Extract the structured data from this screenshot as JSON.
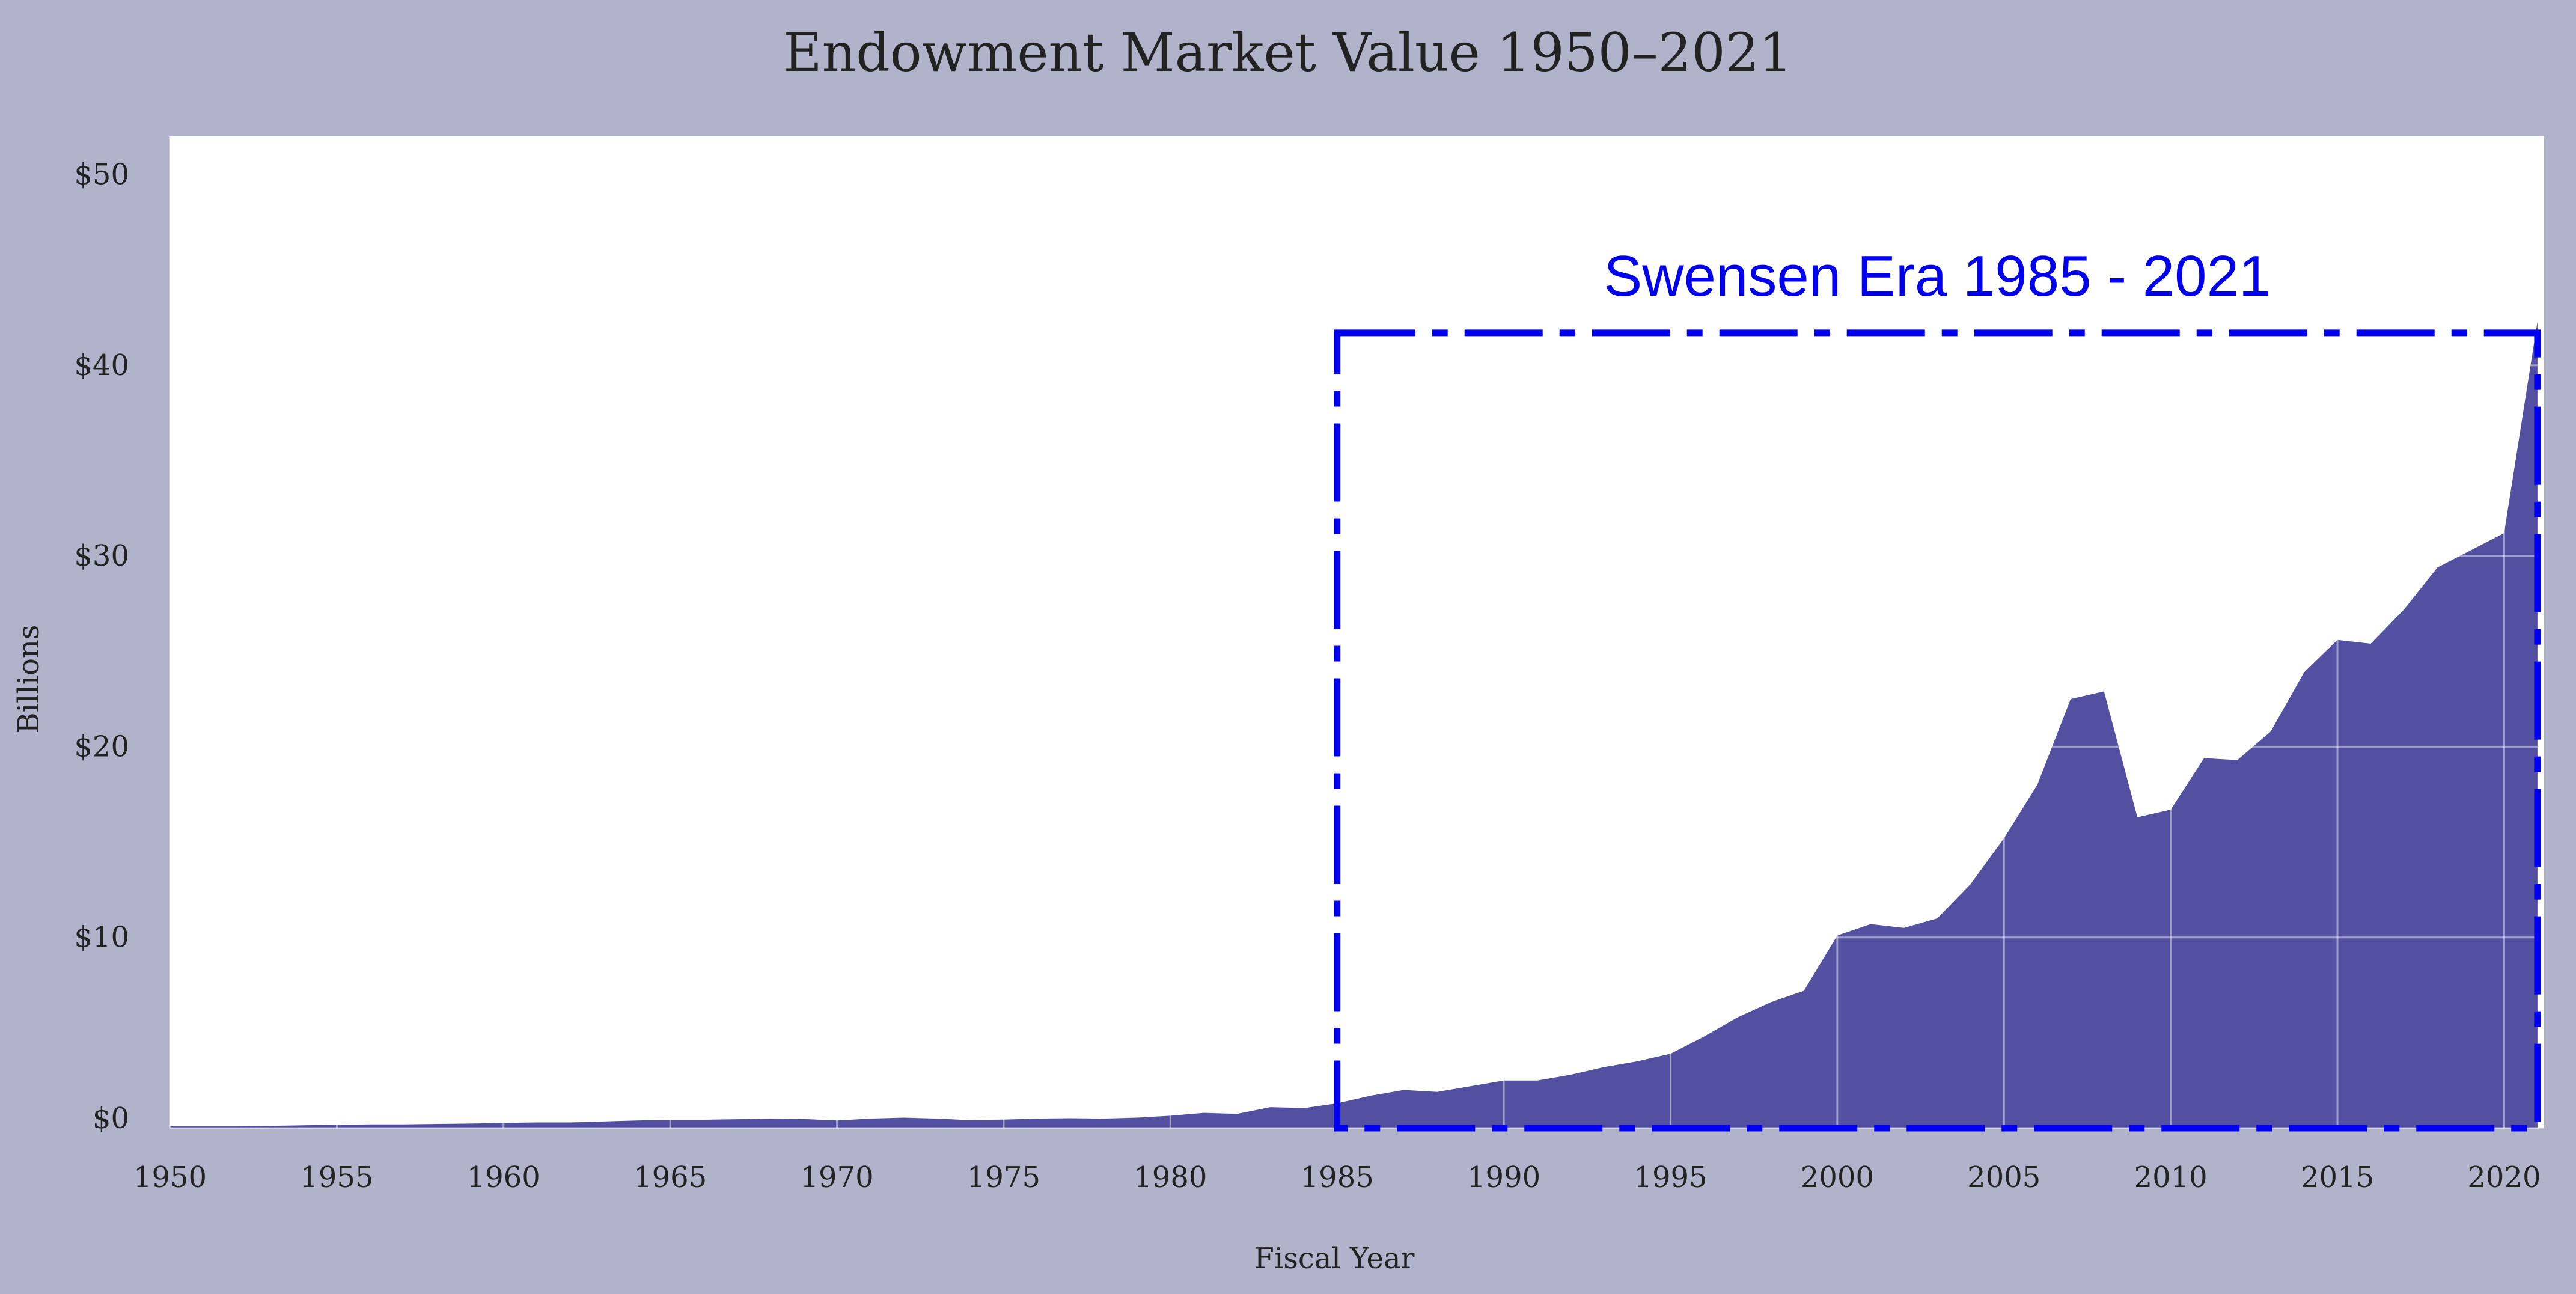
{
  "chart_data": {
    "type": "area",
    "title": "Endowment Market Value 1950–2021",
    "xlabel": "Fiscal Year",
    "ylabel": "Billions",
    "xlim": [
      1950,
      2021
    ],
    "ylim": [
      0,
      52
    ],
    "x_ticks": [
      {
        "value": 1950,
        "label": "1950"
      },
      {
        "value": 1955,
        "label": "1955"
      },
      {
        "value": 1960,
        "label": "1960"
      },
      {
        "value": 1965,
        "label": "1965"
      },
      {
        "value": 1970,
        "label": "1970"
      },
      {
        "value": 1975,
        "label": "1975"
      },
      {
        "value": 1980,
        "label": "1980"
      },
      {
        "value": 1985,
        "label": "1985"
      },
      {
        "value": 1990,
        "label": "1990"
      },
      {
        "value": 1995,
        "label": "1995"
      },
      {
        "value": 2000,
        "label": "2000"
      },
      {
        "value": 2005,
        "label": "2005"
      },
      {
        "value": 2010,
        "label": "2010"
      },
      {
        "value": 2015,
        "label": "2015"
      },
      {
        "value": 2020,
        "label": "2020"
      }
    ],
    "y_ticks": [
      {
        "value": 0,
        "label": "$0"
      },
      {
        "value": 10,
        "label": "$10"
      },
      {
        "value": 20,
        "label": "$20"
      },
      {
        "value": 30,
        "label": "$30"
      },
      {
        "value": 40,
        "label": "$40"
      },
      {
        "value": 50,
        "label": "$50"
      }
    ],
    "grid": true,
    "series": [
      {
        "color": "#5350a2",
        "x": [
          1950,
          1951,
          1952,
          1953,
          1954,
          1955,
          1956,
          1957,
          1958,
          1959,
          1960,
          1961,
          1962,
          1963,
          1964,
          1965,
          1966,
          1967,
          1968,
          1969,
          1970,
          1971,
          1972,
          1973,
          1974,
          1975,
          1976,
          1977,
          1978,
          1979,
          1980,
          1981,
          1982,
          1983,
          1984,
          1985,
          1986,
          1987,
          1988,
          1989,
          1990,
          1991,
          1992,
          1993,
          1994,
          1995,
          1996,
          1997,
          1998,
          1999,
          2000,
          2001,
          2002,
          2003,
          2004,
          2005,
          2006,
          2007,
          2008,
          2009,
          2010,
          2011,
          2012,
          2013,
          2014,
          2015,
          2016,
          2017,
          2018,
          2019,
          2020,
          2021
        ],
        "values": [
          0.1,
          0.1,
          0.1,
          0.12,
          0.15,
          0.17,
          0.2,
          0.2,
          0.22,
          0.24,
          0.27,
          0.3,
          0.3,
          0.35,
          0.4,
          0.44,
          0.44,
          0.47,
          0.5,
          0.48,
          0.4,
          0.5,
          0.55,
          0.5,
          0.42,
          0.45,
          0.5,
          0.52,
          0.5,
          0.55,
          0.65,
          0.8,
          0.75,
          1.1,
          1.05,
          1.3,
          1.7,
          2.0,
          1.9,
          2.2,
          2.5,
          2.5,
          2.8,
          3.2,
          3.5,
          3.9,
          4.8,
          5.8,
          6.6,
          7.2,
          10.1,
          10.7,
          10.5,
          11.0,
          12.8,
          15.2,
          18.0,
          22.5,
          22.9,
          16.3,
          16.7,
          19.4,
          19.3,
          20.8,
          23.9,
          25.6,
          25.4,
          27.2,
          29.4,
          30.3,
          31.2,
          42.3
        ]
      }
    ],
    "annotation": {
      "text": "Swensen Era 1985 - 2021",
      "x_start": 1985,
      "x_end": 2021,
      "y_top": 41.7,
      "color": "#0000ee"
    }
  }
}
